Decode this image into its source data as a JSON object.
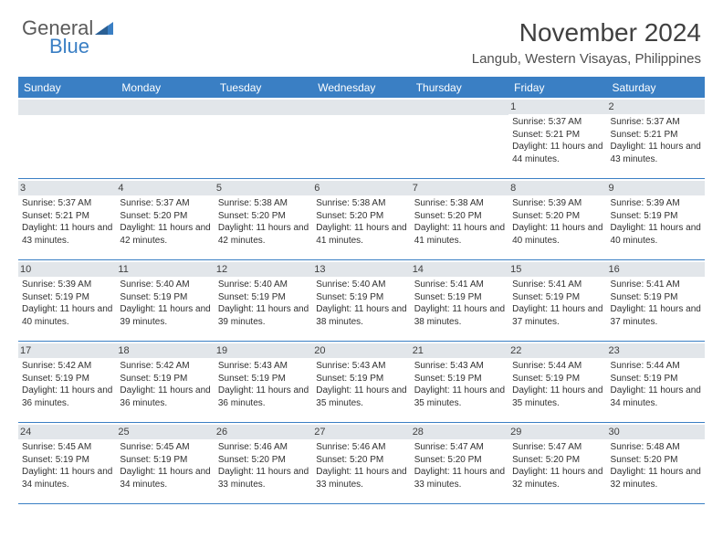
{
  "logo": {
    "text1": "General",
    "text2": "Blue",
    "color1": "#5a5a5a",
    "color2": "#3a7fc4"
  },
  "header": {
    "month_title": "November 2024",
    "location": "Langub, Western Visayas, Philippines"
  },
  "colors": {
    "header_row_bg": "#3a7fc4",
    "day_num_bg": "#e2e6ea",
    "week_border": "#3a7fc4",
    "header_border": "#3a7fc4"
  },
  "day_labels": [
    "Sunday",
    "Monday",
    "Tuesday",
    "Wednesday",
    "Thursday",
    "Friday",
    "Saturday"
  ],
  "weeks": [
    [
      {
        "num": "",
        "sunrise": "",
        "sunset": "",
        "daylight": ""
      },
      {
        "num": "",
        "sunrise": "",
        "sunset": "",
        "daylight": ""
      },
      {
        "num": "",
        "sunrise": "",
        "sunset": "",
        "daylight": ""
      },
      {
        "num": "",
        "sunrise": "",
        "sunset": "",
        "daylight": ""
      },
      {
        "num": "",
        "sunrise": "",
        "sunset": "",
        "daylight": ""
      },
      {
        "num": "1",
        "sunrise": "Sunrise: 5:37 AM",
        "sunset": "Sunset: 5:21 PM",
        "daylight": "Daylight: 11 hours and 44 minutes."
      },
      {
        "num": "2",
        "sunrise": "Sunrise: 5:37 AM",
        "sunset": "Sunset: 5:21 PM",
        "daylight": "Daylight: 11 hours and 43 minutes."
      }
    ],
    [
      {
        "num": "3",
        "sunrise": "Sunrise: 5:37 AM",
        "sunset": "Sunset: 5:21 PM",
        "daylight": "Daylight: 11 hours and 43 minutes."
      },
      {
        "num": "4",
        "sunrise": "Sunrise: 5:37 AM",
        "sunset": "Sunset: 5:20 PM",
        "daylight": "Daylight: 11 hours and 42 minutes."
      },
      {
        "num": "5",
        "sunrise": "Sunrise: 5:38 AM",
        "sunset": "Sunset: 5:20 PM",
        "daylight": "Daylight: 11 hours and 42 minutes."
      },
      {
        "num": "6",
        "sunrise": "Sunrise: 5:38 AM",
        "sunset": "Sunset: 5:20 PM",
        "daylight": "Daylight: 11 hours and 41 minutes."
      },
      {
        "num": "7",
        "sunrise": "Sunrise: 5:38 AM",
        "sunset": "Sunset: 5:20 PM",
        "daylight": "Daylight: 11 hours and 41 minutes."
      },
      {
        "num": "8",
        "sunrise": "Sunrise: 5:39 AM",
        "sunset": "Sunset: 5:20 PM",
        "daylight": "Daylight: 11 hours and 40 minutes."
      },
      {
        "num": "9",
        "sunrise": "Sunrise: 5:39 AM",
        "sunset": "Sunset: 5:19 PM",
        "daylight": "Daylight: 11 hours and 40 minutes."
      }
    ],
    [
      {
        "num": "10",
        "sunrise": "Sunrise: 5:39 AM",
        "sunset": "Sunset: 5:19 PM",
        "daylight": "Daylight: 11 hours and 40 minutes."
      },
      {
        "num": "11",
        "sunrise": "Sunrise: 5:40 AM",
        "sunset": "Sunset: 5:19 PM",
        "daylight": "Daylight: 11 hours and 39 minutes."
      },
      {
        "num": "12",
        "sunrise": "Sunrise: 5:40 AM",
        "sunset": "Sunset: 5:19 PM",
        "daylight": "Daylight: 11 hours and 39 minutes."
      },
      {
        "num": "13",
        "sunrise": "Sunrise: 5:40 AM",
        "sunset": "Sunset: 5:19 PM",
        "daylight": "Daylight: 11 hours and 38 minutes."
      },
      {
        "num": "14",
        "sunrise": "Sunrise: 5:41 AM",
        "sunset": "Sunset: 5:19 PM",
        "daylight": "Daylight: 11 hours and 38 minutes."
      },
      {
        "num": "15",
        "sunrise": "Sunrise: 5:41 AM",
        "sunset": "Sunset: 5:19 PM",
        "daylight": "Daylight: 11 hours and 37 minutes."
      },
      {
        "num": "16",
        "sunrise": "Sunrise: 5:41 AM",
        "sunset": "Sunset: 5:19 PM",
        "daylight": "Daylight: 11 hours and 37 minutes."
      }
    ],
    [
      {
        "num": "17",
        "sunrise": "Sunrise: 5:42 AM",
        "sunset": "Sunset: 5:19 PM",
        "daylight": "Daylight: 11 hours and 36 minutes."
      },
      {
        "num": "18",
        "sunrise": "Sunrise: 5:42 AM",
        "sunset": "Sunset: 5:19 PM",
        "daylight": "Daylight: 11 hours and 36 minutes."
      },
      {
        "num": "19",
        "sunrise": "Sunrise: 5:43 AM",
        "sunset": "Sunset: 5:19 PM",
        "daylight": "Daylight: 11 hours and 36 minutes."
      },
      {
        "num": "20",
        "sunrise": "Sunrise: 5:43 AM",
        "sunset": "Sunset: 5:19 PM",
        "daylight": "Daylight: 11 hours and 35 minutes."
      },
      {
        "num": "21",
        "sunrise": "Sunrise: 5:43 AM",
        "sunset": "Sunset: 5:19 PM",
        "daylight": "Daylight: 11 hours and 35 minutes."
      },
      {
        "num": "22",
        "sunrise": "Sunrise: 5:44 AM",
        "sunset": "Sunset: 5:19 PM",
        "daylight": "Daylight: 11 hours and 35 minutes."
      },
      {
        "num": "23",
        "sunrise": "Sunrise: 5:44 AM",
        "sunset": "Sunset: 5:19 PM",
        "daylight": "Daylight: 11 hours and 34 minutes."
      }
    ],
    [
      {
        "num": "24",
        "sunrise": "Sunrise: 5:45 AM",
        "sunset": "Sunset: 5:19 PM",
        "daylight": "Daylight: 11 hours and 34 minutes."
      },
      {
        "num": "25",
        "sunrise": "Sunrise: 5:45 AM",
        "sunset": "Sunset: 5:19 PM",
        "daylight": "Daylight: 11 hours and 34 minutes."
      },
      {
        "num": "26",
        "sunrise": "Sunrise: 5:46 AM",
        "sunset": "Sunset: 5:20 PM",
        "daylight": "Daylight: 11 hours and 33 minutes."
      },
      {
        "num": "27",
        "sunrise": "Sunrise: 5:46 AM",
        "sunset": "Sunset: 5:20 PM",
        "daylight": "Daylight: 11 hours and 33 minutes."
      },
      {
        "num": "28",
        "sunrise": "Sunrise: 5:47 AM",
        "sunset": "Sunset: 5:20 PM",
        "daylight": "Daylight: 11 hours and 33 minutes."
      },
      {
        "num": "29",
        "sunrise": "Sunrise: 5:47 AM",
        "sunset": "Sunset: 5:20 PM",
        "daylight": "Daylight: 11 hours and 32 minutes."
      },
      {
        "num": "30",
        "sunrise": "Sunrise: 5:48 AM",
        "sunset": "Sunset: 5:20 PM",
        "daylight": "Daylight: 11 hours and 32 minutes."
      }
    ]
  ]
}
